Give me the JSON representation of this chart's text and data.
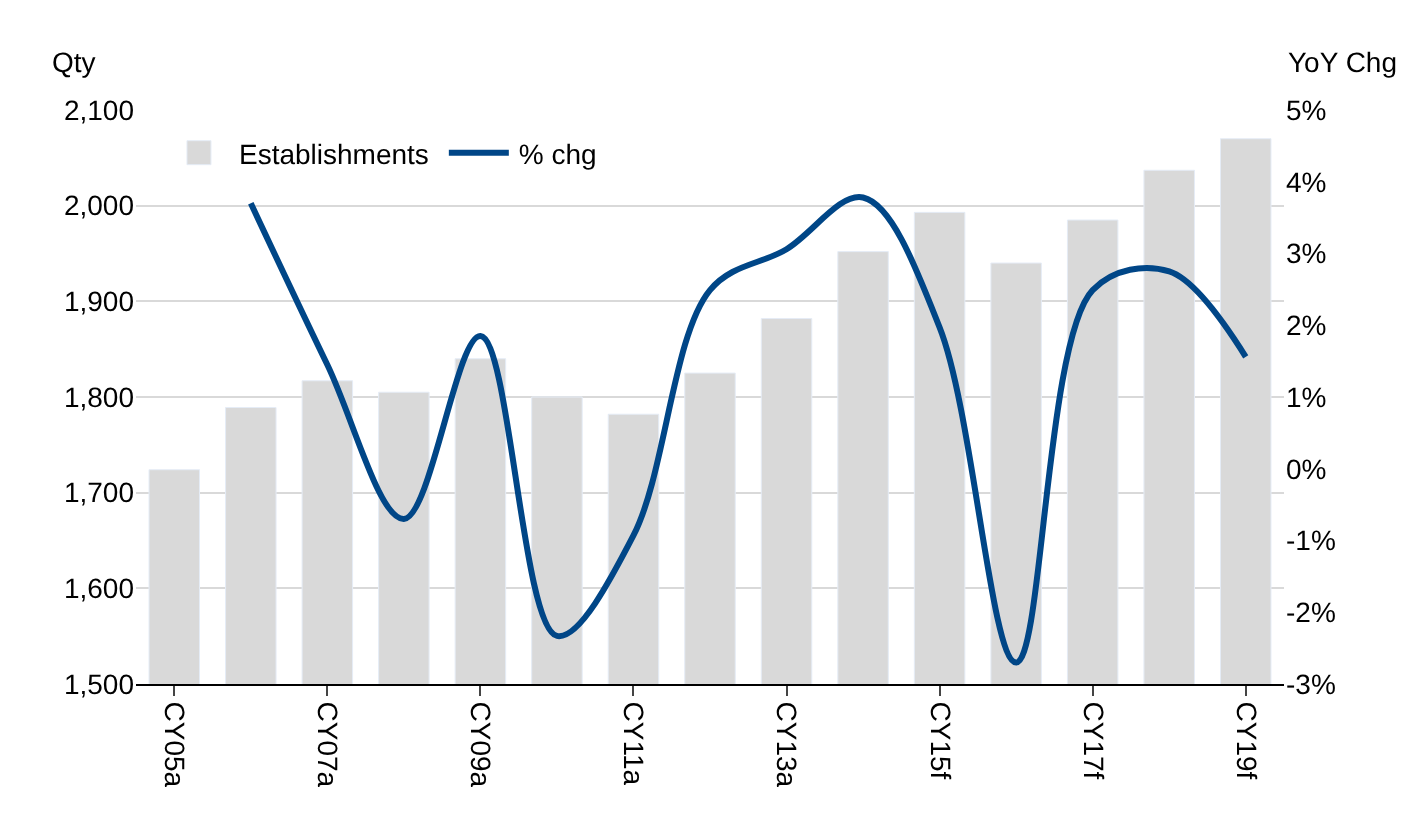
{
  "chart_data": {
    "type": "bar",
    "ylabel": "Qty",
    "y2label": "YoY Chg",
    "categories": [
      "CY05a",
      null,
      "CY07a",
      null,
      "CY09a",
      null,
      "CY11a",
      null,
      "CY13a",
      null,
      "CY15f",
      null,
      "CY17f",
      null,
      "CY19f"
    ],
    "series": [
      {
        "name": "Establishments",
        "color": "#d9d9d9",
        "values": [
          1724,
          1789,
          1817,
          1805,
          1840,
          1800,
          1782,
          1825,
          1882,
          1952,
          1993,
          1940,
          1985,
          2037,
          2070
        ]
      },
      {
        "name": "% chg",
        "type": "line",
        "axis": "y2",
        "color": "#004687",
        "values": [
          null,
          3.7,
          1.45,
          -0.7,
          1.85,
          -2.33,
          -0.93,
          2.49,
          3.06,
          3.78,
          1.97,
          -2.7,
          2.49,
          2.75,
          1.56
        ]
      }
    ],
    "ylim": [
      1500,
      2100
    ],
    "yticks": [
      {
        "value": 1500,
        "label": "1,500"
      },
      {
        "value": 1600,
        "label": "1,600"
      },
      {
        "value": 1700,
        "label": "1,700"
      },
      {
        "value": 1800,
        "label": "1,800"
      },
      {
        "value": 1900,
        "label": "1,900"
      },
      {
        "value": 2000,
        "label": "2,000"
      },
      {
        "value": 2100,
        "label": "2,100"
      }
    ],
    "y2lim": [
      -3,
      5
    ],
    "y2ticks": [
      {
        "value": -3,
        "label": "-3%"
      },
      {
        "value": -2,
        "label": "-2%"
      },
      {
        "value": -1,
        "label": "-1%"
      },
      {
        "value": 0,
        "label": "0%"
      },
      {
        "value": 1,
        "label": "1%"
      },
      {
        "value": 2,
        "label": "2%"
      },
      {
        "value": 3,
        "label": "3%"
      },
      {
        "value": 4,
        "label": "4%"
      },
      {
        "value": 5,
        "label": "5%"
      }
    ],
    "grid": "y",
    "legend": "top left"
  }
}
